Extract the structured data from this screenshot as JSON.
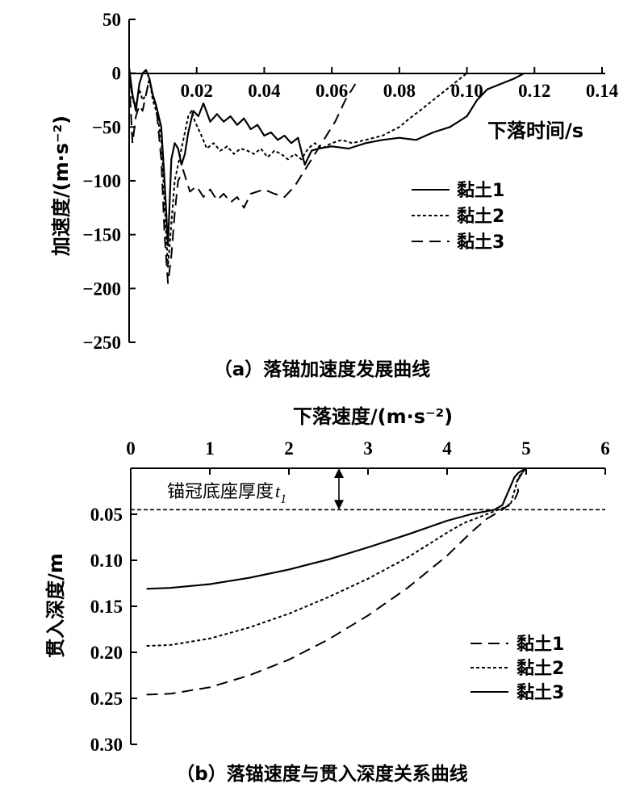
{
  "chart_data": [
    {
      "type": "line",
      "title": "（a）落锚加速度发展曲线",
      "xlabel": "下落时间/s",
      "ylabel": "加速度/(m·s⁻²)",
      "xlim": [
        0,
        0.14
      ],
      "ylim": [
        -250,
        50
      ],
      "xticks": [
        "0.02",
        "0.04",
        "0.06",
        "0.08",
        "0.10",
        "0.12",
        "0.14"
      ],
      "yticks": [
        "50",
        "0",
        "−50",
        "−100",
        "−150",
        "−200",
        "−250"
      ],
      "series": [
        {
          "name": "黏土1",
          "style": "solid",
          "x": [
            0,
            0.001,
            0.002,
            0.003,
            0.004,
            0.005,
            0.006,
            0.007,
            0.008,
            0.0095,
            0.0105,
            0.0115,
            0.0125,
            0.0135,
            0.0145,
            0.0155,
            0.0165,
            0.0175,
            0.019,
            0.0205,
            0.022,
            0.024,
            0.026,
            0.028,
            0.03,
            0.032,
            0.034,
            0.036,
            0.038,
            0.04,
            0.042,
            0.044,
            0.046,
            0.048,
            0.05,
            0.052,
            0.054,
            0.056,
            0.06,
            0.065,
            0.07,
            0.075,
            0.08,
            0.085,
            0.09,
            0.095,
            0.1,
            0.103,
            0.106,
            0.11,
            0.114,
            0.117
          ],
          "y": [
            5,
            -20,
            -35,
            -10,
            0,
            3,
            -5,
            -20,
            -30,
            -50,
            -100,
            -160,
            -80,
            -65,
            -70,
            -85,
            -75,
            -55,
            -35,
            -40,
            -28,
            -45,
            -38,
            -45,
            -40,
            -48,
            -42,
            -52,
            -48,
            -58,
            -55,
            -62,
            -58,
            -65,
            -60,
            -85,
            -72,
            -70,
            -68,
            -70,
            -65,
            -62,
            -60,
            -62,
            -55,
            -50,
            -40,
            -25,
            -15,
            -10,
            -5,
            0
          ]
        },
        {
          "name": "黏土2",
          "style": "dotted",
          "x": [
            0,
            0.001,
            0.002,
            0.003,
            0.004,
            0.005,
            0.006,
            0.007,
            0.008,
            0.0095,
            0.0105,
            0.0115,
            0.0125,
            0.0135,
            0.0145,
            0.0155,
            0.0165,
            0.0175,
            0.0185,
            0.0195,
            0.021,
            0.023,
            0.025,
            0.027,
            0.029,
            0.031,
            0.033,
            0.035,
            0.037,
            0.039,
            0.041,
            0.043,
            0.045,
            0.047,
            0.049,
            0.051,
            0.053,
            0.055,
            0.057,
            0.06,
            0.063,
            0.066,
            0.07,
            0.075,
            0.08,
            0.083,
            0.086,
            0.09,
            0.094,
            0.098,
            0.1
          ],
          "y": [
            0,
            -25,
            -30,
            -15,
            -25,
            -20,
            -5,
            -25,
            -35,
            -60,
            -120,
            -180,
            -140,
            -100,
            -85,
            -70,
            -55,
            -40,
            -35,
            -45,
            -55,
            -70,
            -65,
            -72,
            -68,
            -75,
            -70,
            -72,
            -75,
            -70,
            -78,
            -72,
            -75,
            -80,
            -75,
            -80,
            -70,
            -65,
            -70,
            -65,
            -62,
            -65,
            -62,
            -58,
            -50,
            -42,
            -35,
            -25,
            -15,
            -5,
            0
          ]
        },
        {
          "name": "黏土3",
          "style": "dashed",
          "x": [
            0,
            0.001,
            0.002,
            0.003,
            0.004,
            0.005,
            0.006,
            0.007,
            0.008,
            0.0095,
            0.0105,
            0.0115,
            0.0125,
            0.0135,
            0.0145,
            0.016,
            0.018,
            0.02,
            0.022,
            0.024,
            0.026,
            0.028,
            0.03,
            0.032,
            0.034,
            0.036,
            0.038,
            0.04,
            0.043,
            0.046,
            0.049,
            0.052,
            0.055,
            0.058,
            0.061,
            0.064,
            0.067
          ],
          "y": [
            -5,
            -65,
            -40,
            -30,
            -35,
            -20,
            -5,
            -20,
            -30,
            -80,
            -150,
            -195,
            -170,
            -130,
            -100,
            -90,
            -110,
            -105,
            -115,
            -108,
            -118,
            -112,
            -120,
            -115,
            -125,
            -112,
            -110,
            -108,
            -112,
            -115,
            -105,
            -90,
            -75,
            -60,
            -45,
            -25,
            -10
          ]
        }
      ]
    },
    {
      "type": "line",
      "title": "（b）落锚速度与贯入深度关系曲线",
      "xlabel": "下落速度/(m·s⁻²)",
      "ylabel": "贯入深度/m",
      "xlim": [
        0,
        6
      ],
      "ylim": [
        0,
        0.3
      ],
      "y_inverted": true,
      "xticks": [
        "0",
        "1",
        "2",
        "3",
        "4",
        "5",
        "6"
      ],
      "yticks": [
        "0.05",
        "0.10",
        "0.15",
        "0.20",
        "0.25",
        "0.30"
      ],
      "reference_line": {
        "y": 0.045,
        "label": "锚冠底座厚度",
        "symbol": "t",
        "subscript": "1"
      },
      "series": [
        {
          "name": "黏土1",
          "style": "dashed",
          "x": [
            0.2,
            0.5,
            1.0,
            1.5,
            2.0,
            2.5,
            3.0,
            3.5,
            4.0,
            4.3,
            4.5,
            4.7,
            4.85,
            4.9,
            4.88,
            4.95,
            5.0
          ],
          "y": [
            0.246,
            0.245,
            0.238,
            0.225,
            0.208,
            0.186,
            0.16,
            0.13,
            0.095,
            0.07,
            0.055,
            0.045,
            0.035,
            0.025,
            0.015,
            0.005,
            0.0
          ]
        },
        {
          "name": "黏土2",
          "style": "dotted",
          "x": [
            0.2,
            0.5,
            1.0,
            1.5,
            2.0,
            2.5,
            3.0,
            3.5,
            4.0,
            4.2,
            4.5,
            4.8,
            4.85,
            4.9,
            5.0
          ],
          "y": [
            0.193,
            0.192,
            0.185,
            0.173,
            0.158,
            0.14,
            0.12,
            0.097,
            0.07,
            0.06,
            0.05,
            0.04,
            0.025,
            0.01,
            0.0
          ]
        },
        {
          "name": "黏土3",
          "style": "solid",
          "x": [
            0.2,
            0.5,
            1.0,
            1.5,
            2.0,
            2.5,
            3.0,
            3.5,
            4.0,
            4.3,
            4.6,
            4.7,
            4.75,
            4.8,
            4.85,
            4.9,
            5.0
          ],
          "y": [
            0.131,
            0.13,
            0.126,
            0.119,
            0.11,
            0.099,
            0.086,
            0.072,
            0.057,
            0.05,
            0.045,
            0.04,
            0.03,
            0.02,
            0.01,
            0.005,
            0.0
          ]
        }
      ]
    }
  ]
}
